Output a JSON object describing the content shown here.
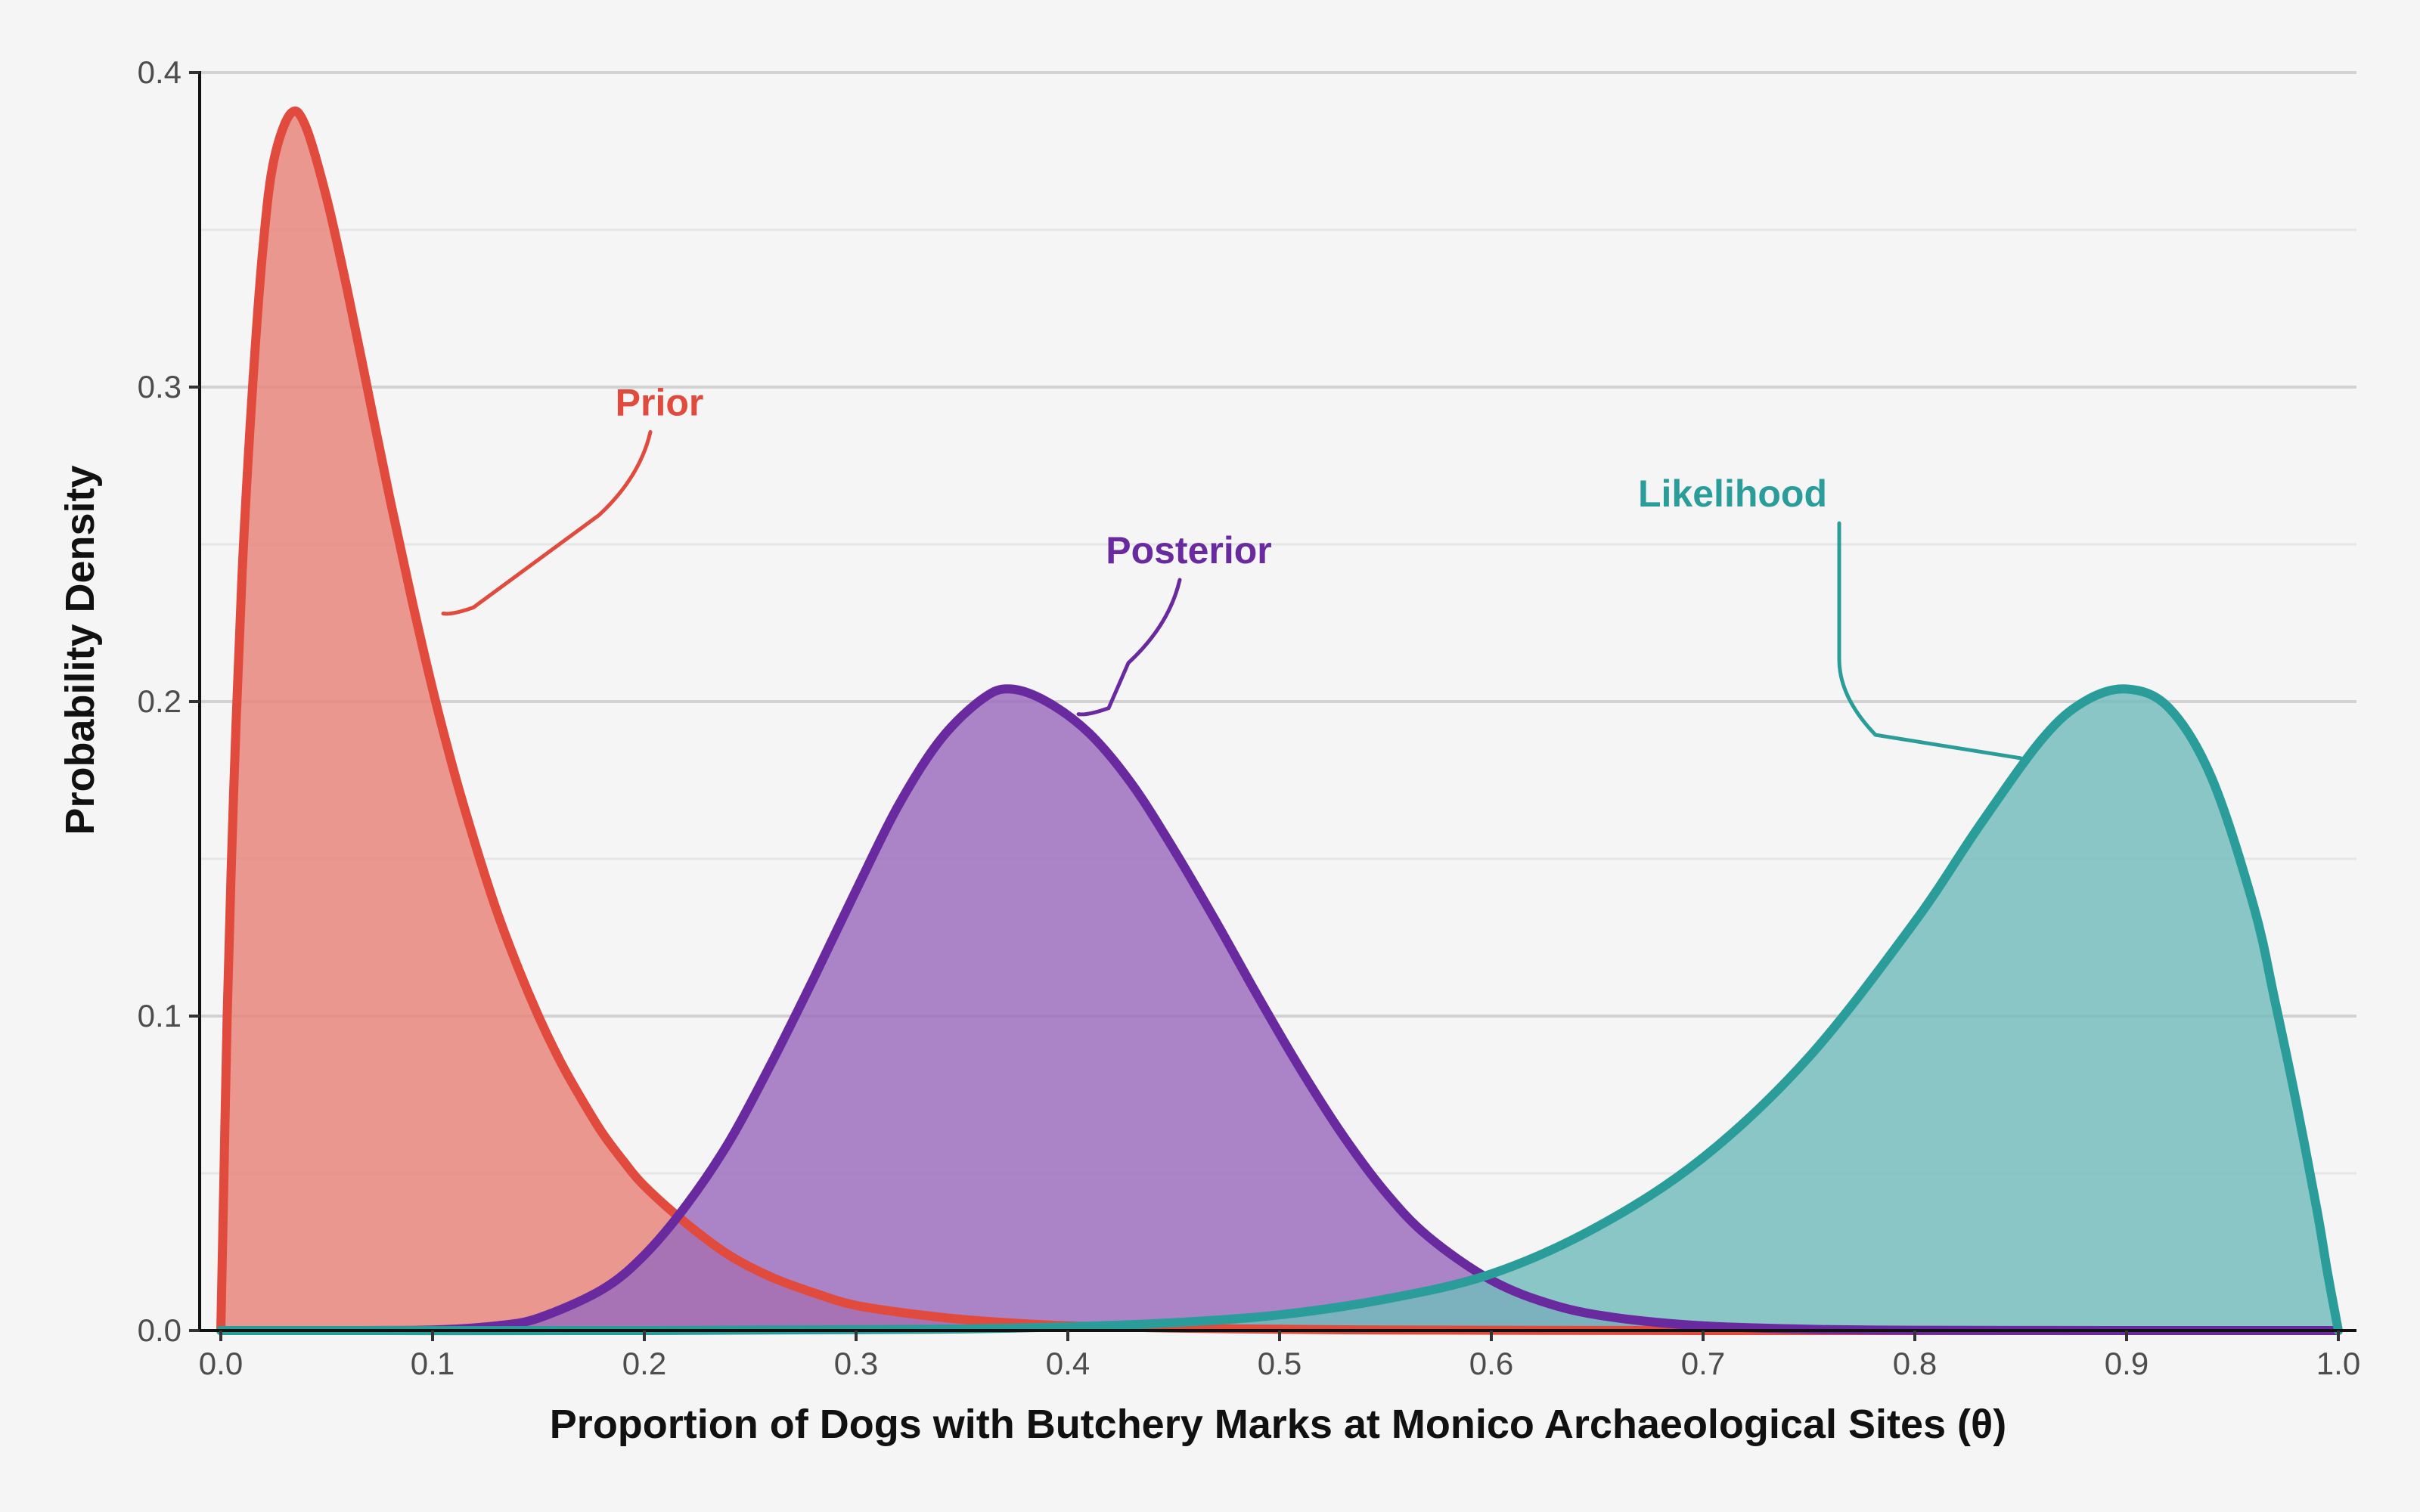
{
  "chart_data": {
    "type": "area",
    "title": "",
    "xlabel": "Proportion of Dogs with Butchery Marks at Monico Archaeological Sites (θ)",
    "ylabel": "Probability Density",
    "xlim": [
      0,
      1
    ],
    "ylim": [
      0,
      0.4
    ],
    "x_ticks": [
      0.0,
      0.1,
      0.2,
      0.3,
      0.4,
      0.5,
      0.6,
      0.7,
      0.8,
      0.9,
      1.0
    ],
    "x_tick_labels": [
      "0.0",
      "0.1",
      "0.2",
      "0.3",
      "0.4",
      "0.5",
      "0.6",
      "0.7",
      "0.8",
      "0.9",
      "1.0"
    ],
    "y_ticks": [
      0.0,
      0.1,
      0.2,
      0.3,
      0.4
    ],
    "y_tick_labels": [
      "0.0",
      "0.1",
      "0.2",
      "0.3",
      "0.4"
    ],
    "grid": true,
    "legend": "none",
    "series": [
      {
        "name": "Prior",
        "color": "#e04b3d",
        "fill": "#e8837a",
        "line_width": 12,
        "x": [
          0,
          0.0015,
          0.003,
          0.006,
          0.01,
          0.015,
          0.02,
          0.025,
          0.033,
          0.04,
          0.05,
          0.06,
          0.07,
          0.08,
          0.09,
          0.1,
          0.11,
          0.12,
          0.13,
          0.14,
          0.15,
          0.16,
          0.17,
          0.18,
          0.19,
          0.2,
          0.22,
          0.24,
          0.26,
          0.28,
          0.3,
          0.33,
          0.36,
          0.4,
          0.45,
          0.5,
          0.55,
          0.6,
          0.7,
          0.8,
          0.9,
          1.0
        ],
        "y": [
          0,
          0.05,
          0.1,
          0.17,
          0.24,
          0.3,
          0.345,
          0.372,
          0.387,
          0.383,
          0.36,
          0.33,
          0.297,
          0.264,
          0.233,
          0.204,
          0.178,
          0.155,
          0.134,
          0.116,
          0.1,
          0.086,
          0.074,
          0.063,
          0.054,
          0.046,
          0.034,
          0.024,
          0.017,
          0.012,
          0.008,
          0.005,
          0.003,
          0.0015,
          0.0008,
          0.0004,
          0.0002,
          0.0001,
          0,
          0,
          0,
          0
        ]
      },
      {
        "name": "Posterior",
        "color": "#6a2a9f",
        "fill": "#9a6bbd",
        "line_width": 12,
        "x": [
          0,
          0.05,
          0.1,
          0.13,
          0.15,
          0.18,
          0.2,
          0.22,
          0.24,
          0.26,
          0.28,
          0.3,
          0.32,
          0.34,
          0.36,
          0.373,
          0.39,
          0.41,
          0.43,
          0.45,
          0.47,
          0.49,
          0.51,
          0.53,
          0.55,
          0.57,
          0.6,
          0.63,
          0.66,
          0.7,
          0.75,
          0.8,
          0.9,
          1.0
        ],
        "y": [
          0,
          0,
          0.0002,
          0.0015,
          0.004,
          0.013,
          0.024,
          0.04,
          0.06,
          0.085,
          0.112,
          0.14,
          0.167,
          0.188,
          0.201,
          0.204,
          0.2,
          0.19,
          0.174,
          0.153,
          0.13,
          0.106,
          0.083,
          0.062,
          0.044,
          0.03,
          0.016,
          0.008,
          0.004,
          0.0015,
          0.0004,
          0.0001,
          0,
          0
        ]
      },
      {
        "name": "Likelihood",
        "color": "#2a9d9a",
        "fill": "#72bcbb",
        "line_width": 12,
        "x": [
          0,
          0.2,
          0.3,
          0.35,
          0.4,
          0.45,
          0.5,
          0.55,
          0.6,
          0.65,
          0.7,
          0.75,
          0.8,
          0.83,
          0.86,
          0.88,
          0.9,
          0.92,
          0.94,
          0.96,
          0.97,
          0.98,
          0.99,
          0.995,
          1.0
        ],
        "y": [
          0,
          0,
          0.0003,
          0.0005,
          0.0012,
          0.0025,
          0.005,
          0.01,
          0.018,
          0.033,
          0.055,
          0.087,
          0.13,
          0.16,
          0.188,
          0.2,
          0.204,
          0.198,
          0.176,
          0.135,
          0.105,
          0.073,
          0.038,
          0.018,
          0
        ]
      }
    ],
    "annotations": [
      {
        "label": "Prior",
        "series": "Prior",
        "text_x": 0.2,
        "text_y": 0.291,
        "point_x": 0.105,
        "point_y": 0.228
      },
      {
        "label": "Posterior",
        "series": "Posterior",
        "text_x": 0.45,
        "text_y": 0.244,
        "point_x": 0.405,
        "point_y": 0.196
      },
      {
        "label": "Likelihood",
        "series": "Likelihood",
        "text_x": 0.76,
        "text_y": 0.262,
        "point_x": 0.85,
        "point_y": 0.182
      }
    ]
  }
}
